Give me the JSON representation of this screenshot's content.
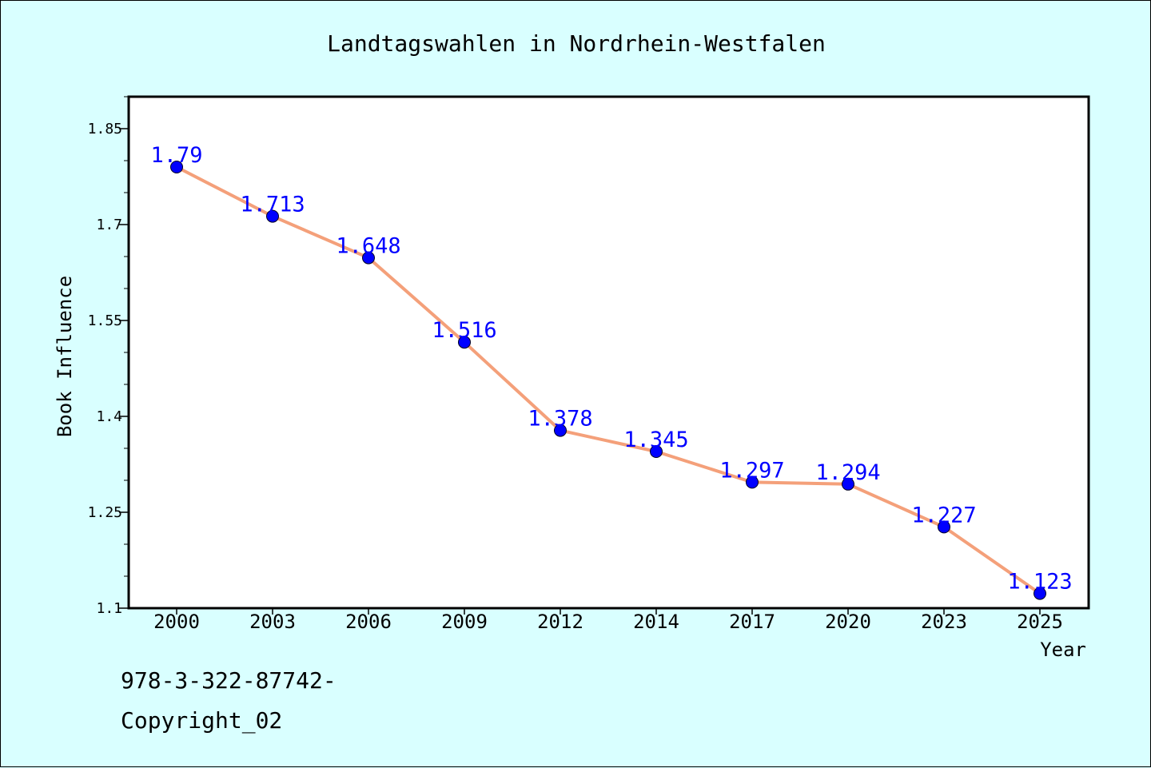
{
  "chart_data": {
    "type": "line",
    "title": "Landtagswahlen in Nordrhein-Westfalen",
    "xlabel": "Year",
    "ylabel": "Book Influence",
    "categories": [
      "2000",
      "2003",
      "2006",
      "2009",
      "2012",
      "2014",
      "2017",
      "2020",
      "2023",
      "2025"
    ],
    "series": [
      {
        "values": [
          1.79,
          1.713,
          1.648,
          1.516,
          1.378,
          1.345,
          1.297,
          1.294,
          1.227,
          1.123
        ]
      }
    ],
    "data_labels": [
      "1.79",
      "1.713",
      "1.648",
      "1.516",
      "1.378",
      "1.345",
      "1.297",
      "1.294",
      "1.227",
      "1.123"
    ],
    "ylim": [
      1.1,
      1.9
    ],
    "yticks": [
      1.1,
      1.25,
      1.4,
      1.55,
      1.7,
      1.85
    ],
    "ytick_labels": [
      "1.1",
      "1.25",
      "1.4",
      "1.55",
      "1.7",
      "1.85"
    ],
    "grid": false,
    "colors": {
      "line": "#f4a07a",
      "marker": "#0000ff",
      "label": "#0000ff",
      "background": "#d9ffff",
      "plot_background": "#ffffff"
    }
  },
  "footer": {
    "isbn": "978-3-322-87742-",
    "copyright": "Copyright_02"
  }
}
